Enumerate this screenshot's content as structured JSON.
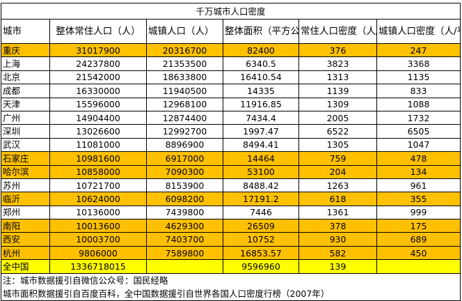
{
  "title": "千万城市人口密度",
  "headers": {
    "city": "城市",
    "total_pop": "整体常住人口（人）",
    "urban_pop": "城镇人口（人）",
    "area": "整体面积（平方公里）",
    "density": "常住人口密度（人/平方公里）",
    "urban_density": "城镇人口密度（人/平方公里）"
  },
  "rows": [
    {
      "city": "重庆",
      "total_pop": "31017900",
      "urban_pop": "20316700",
      "area": "82400",
      "density": "376",
      "urban_density": "247",
      "highlight": "orange"
    },
    {
      "city": "上海",
      "total_pop": "24237800",
      "urban_pop": "21353500",
      "area": "6340.5",
      "density": "3823",
      "urban_density": "3368",
      "highlight": ""
    },
    {
      "city": "北京",
      "total_pop": "21542000",
      "urban_pop": "18633800",
      "area": "16410.54",
      "density": "1313",
      "urban_density": "1135",
      "highlight": ""
    },
    {
      "city": "成都",
      "total_pop": "16330000",
      "urban_pop": "11940500",
      "area": "14335",
      "density": "1139",
      "urban_density": "833",
      "highlight": ""
    },
    {
      "city": "天津",
      "total_pop": "15596000",
      "urban_pop": "12968100",
      "area": "11916.85",
      "density": "1309",
      "urban_density": "1088",
      "highlight": ""
    },
    {
      "city": "广州",
      "total_pop": "14904400",
      "urban_pop": "12874400",
      "area": "7434.4",
      "density": "2005",
      "urban_density": "1732",
      "highlight": ""
    },
    {
      "city": "深圳",
      "total_pop": "13026600",
      "urban_pop": "12992700",
      "area": "1997.47",
      "density": "6522",
      "urban_density": "6505",
      "highlight": ""
    },
    {
      "city": "武汉",
      "total_pop": "11081000",
      "urban_pop": "8896900",
      "area": "8494.41",
      "density": "1305",
      "urban_density": "1047",
      "highlight": ""
    },
    {
      "city": "石家庄",
      "total_pop": "10981600",
      "urban_pop": "6917000",
      "area": "14464",
      "density": "759",
      "urban_density": "478",
      "highlight": "orange"
    },
    {
      "city": "哈尔滨",
      "total_pop": "10858000",
      "urban_pop": "7090300",
      "area": "53100",
      "density": "204",
      "urban_density": "134",
      "highlight": "orange"
    },
    {
      "city": "苏州",
      "total_pop": "10721700",
      "urban_pop": "8153900",
      "area": "8488.42",
      "density": "1263",
      "urban_density": "961",
      "highlight": ""
    },
    {
      "city": "临沂",
      "total_pop": "10624000",
      "urban_pop": "6098200",
      "area": "17191.2",
      "density": "618",
      "urban_density": "355",
      "highlight": "orange"
    },
    {
      "city": "郑州",
      "total_pop": "10136000",
      "urban_pop": "7439800",
      "area": "7446",
      "density": "1361",
      "urban_density": "999",
      "highlight": ""
    },
    {
      "city": "南阳",
      "total_pop": "10013600",
      "urban_pop": "4629300",
      "area": "26509",
      "density": "378",
      "urban_density": "175",
      "highlight": "orange"
    },
    {
      "city": "西安",
      "total_pop": "10003700",
      "urban_pop": "7403700",
      "area": "10752",
      "density": "930",
      "urban_density": "689",
      "highlight": "orange"
    },
    {
      "city": "杭州",
      "total_pop": "9806000",
      "urban_pop": "7589800",
      "area": "16853.57",
      "density": "582",
      "urban_density": "450",
      "highlight": "orange"
    },
    {
      "city": "全中国",
      "total_pop": "1336718015",
      "urban_pop": "",
      "area": "9596960",
      "density": "139",
      "urban_density": "",
      "highlight": "yellow"
    }
  ],
  "notes": {
    "line1": "注：城市数据援引自微信公众号：国民经略",
    "line2": "城市面积数据援引自百度百科，全中国数据援引自世界各国人口密度行榜（2007年）"
  },
  "colors": {
    "orange": "#FFC000",
    "yellow": "#FFFF00"
  }
}
